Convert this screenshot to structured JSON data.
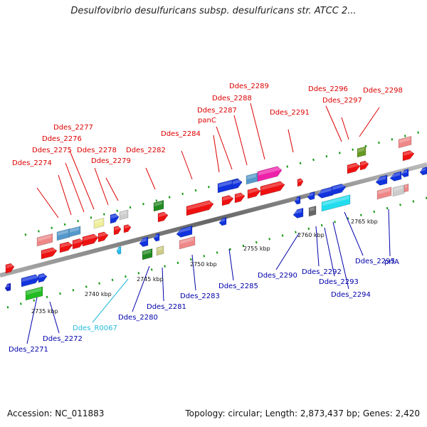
{
  "title": "Desulfovibrio desulfuricans subsp. desulfuricans str. ATCC 2...",
  "accession": "Accession: NC_011883",
  "summary": "Topology: circular; Length: 2,873,437 bp; Genes: 2,420",
  "colors": {
    "top_label": "#dd0000",
    "bottom_label": "#0000aa",
    "rna_label": "#22bbdd",
    "backbone": "#888888"
  },
  "scale_ticks": [
    {
      "label": "2735 kbp",
      "kbp": 2735
    },
    {
      "label": "2740 kbp",
      "kbp": 2740
    },
    {
      "label": "2745 kbp",
      "kbp": 2745
    },
    {
      "label": "2750 kbp",
      "kbp": 2750
    },
    {
      "label": "2755 kbp",
      "kbp": 2755
    },
    {
      "label": "2760 kbp",
      "kbp": 2760
    },
    {
      "label": "2765 kbp",
      "kbp": 2765
    }
  ],
  "top_labels": [
    "Ddes_2274",
    "Ddes_2275",
    "Ddes_2276",
    "Ddes_2277",
    "Ddes_2278",
    "Ddes_2279",
    "Ddes_2282",
    "Ddes_2284",
    "panC",
    "Ddes_2287",
    "Ddes_2288",
    "Ddes_2289",
    "Ddes_2291",
    "Ddes_2296",
    "Ddes_2297",
    "Ddes_2298"
  ],
  "bottom_labels": [
    "Ddes_2271",
    "Ddes_2272",
    "Ddes_R0067",
    "Ddes_2280",
    "Ddes_2281",
    "Ddes_2283",
    "Ddes_2285",
    "Ddes_2290",
    "Ddes_2292",
    "Ddes_2293",
    "Ddes_2294",
    "Ddes_2295",
    "prfA"
  ]
}
